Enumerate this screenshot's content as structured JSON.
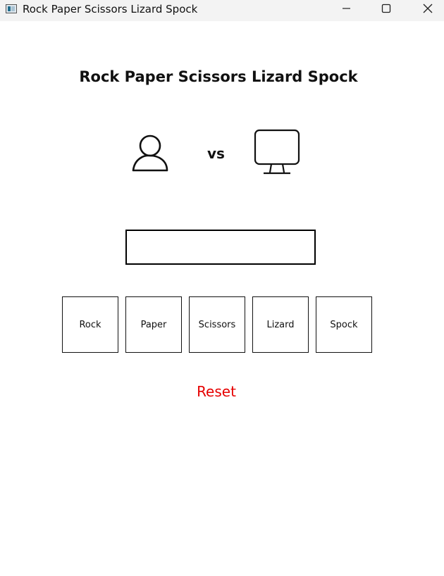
{
  "window": {
    "title": "Rock Paper Scissors Lizard Spock",
    "controls": [
      "minimize-icon",
      "maximize-icon",
      "close-icon"
    ]
  },
  "game": {
    "heading": "Rock Paper Scissors Lizard Spock",
    "player_icon": "person-icon",
    "vs": "vs",
    "computer_icon": "monitor-icon",
    "result": ""
  },
  "choices": [
    "Rock",
    "Paper",
    "Scissors",
    "Lizard",
    "Spock"
  ],
  "reset_label": "Reset",
  "colors": {
    "reset": "#e60000",
    "titlebar": "#f3f3f3"
  }
}
